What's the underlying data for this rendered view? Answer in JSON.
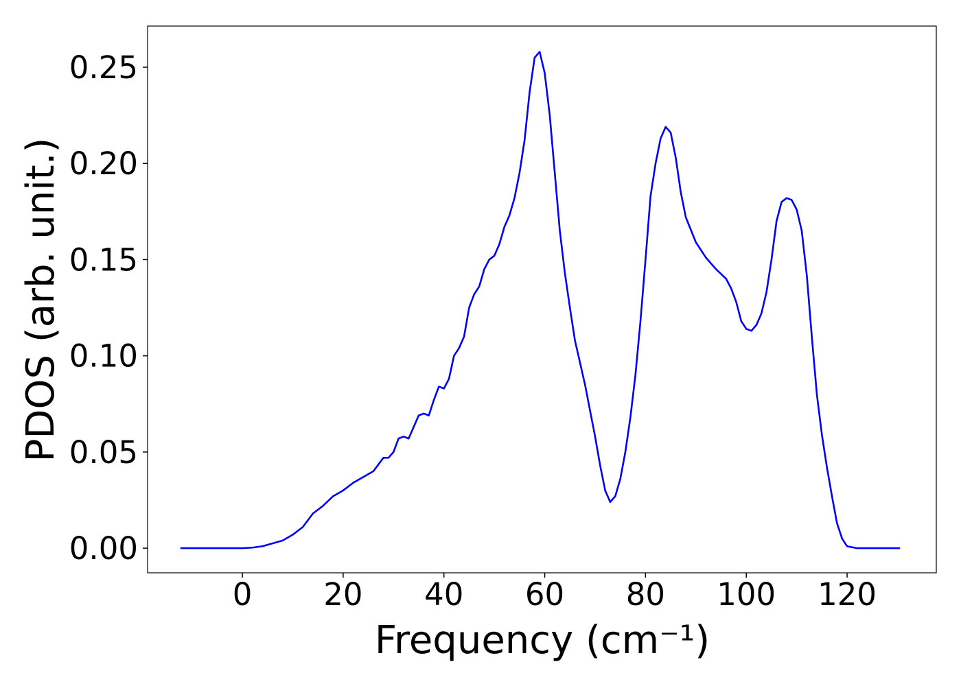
{
  "chart_data": {
    "type": "line",
    "xlabel": "Frequency (cm⁻¹)",
    "ylabel": "PDOS (arb. unit.)",
    "xlim": [
      -18.8,
      137.7
    ],
    "ylim": [
      -0.0128,
      0.2714
    ],
    "xticks": [
      0,
      20,
      40,
      60,
      80,
      100,
      120
    ],
    "yticks": [
      {
        "value": 0,
        "label": "0.00"
      },
      0.05,
      {
        "value": 0.1,
        "label": "0.10"
      },
      0.15,
      {
        "value": 0.2,
        "label": "0.20"
      },
      0.25
    ],
    "grid": false,
    "x": [
      -12.3,
      -5,
      0,
      2,
      4,
      6,
      8,
      10,
      12,
      14,
      16,
      18,
      20,
      22,
      24,
      26,
      28,
      29,
      30,
      31,
      32,
      33,
      34,
      35,
      36,
      37,
      38,
      39,
      40,
      41,
      42,
      43,
      44,
      45,
      46,
      47,
      48,
      49,
      50,
      51,
      52,
      53,
      54,
      55,
      56,
      57,
      58,
      59,
      60,
      61,
      62,
      63,
      64,
      65,
      66,
      68,
      70,
      71,
      72,
      73,
      74,
      75,
      76,
      77,
      78,
      79,
      80,
      81,
      82,
      83,
      84,
      85,
      86,
      87,
      88,
      90,
      92,
      94,
      96,
      97,
      98,
      99,
      100,
      101,
      102,
      103,
      104,
      105,
      106,
      107,
      108,
      109,
      110,
      111,
      112,
      113,
      114,
      115,
      116,
      117,
      118,
      119,
      120,
      122,
      125,
      130.5
    ],
    "series": [
      {
        "name": "PDOS",
        "color": "#0000ff",
        "values": [
          0,
          0,
          0,
          0.0003,
          0.001,
          0.0025,
          0.004,
          0.007,
          0.011,
          0.018,
          0.022,
          0.027,
          0.03,
          0.034,
          0.037,
          0.04,
          0.047,
          0.047,
          0.05,
          0.057,
          0.058,
          0.057,
          0.063,
          0.069,
          0.07,
          0.069,
          0.077,
          0.084,
          0.083,
          0.088,
          0.1,
          0.104,
          0.11,
          0.125,
          0.132,
          0.136,
          0.145,
          0.15,
          0.152,
          0.158,
          0.167,
          0.173,
          0.182,
          0.195,
          0.212,
          0.237,
          0.255,
          0.258,
          0.247,
          0.225,
          0.195,
          0.165,
          0.143,
          0.125,
          0.108,
          0.085,
          0.058,
          0.043,
          0.03,
          0.024,
          0.027,
          0.036,
          0.05,
          0.068,
          0.09,
          0.118,
          0.15,
          0.183,
          0.2,
          0.213,
          0.219,
          0.216,
          0.203,
          0.185,
          0.172,
          0.159,
          0.151,
          0.145,
          0.14,
          0.135,
          0.128,
          0.118,
          0.114,
          0.113,
          0.116,
          0.122,
          0.133,
          0.15,
          0.17,
          0.18,
          0.182,
          0.181,
          0.176,
          0.165,
          0.142,
          0.11,
          0.08,
          0.059,
          0.042,
          0.027,
          0.013,
          0.005,
          0.001,
          0,
          0,
          0
        ]
      }
    ]
  }
}
